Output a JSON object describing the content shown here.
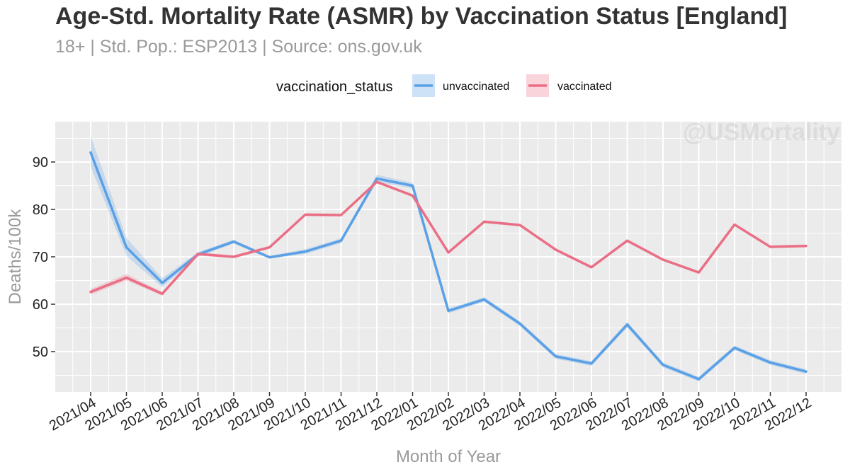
{
  "title": "Age-Std. Mortality Rate (ASMR) by Vaccination Status [England]",
  "subtitle": "18+ | Std. Pop.: ESP2013 | Source: ons.gov.uk",
  "watermark": "@USMortality",
  "colors": {
    "unvaccinated": "#5aa0e6",
    "vaccinated": "#ea6f86",
    "panel": "#ebebeb",
    "grid": "#ffffff"
  },
  "chart_data": {
    "type": "line",
    "title": "Age-Std. Mortality Rate (ASMR) by Vaccination Status [England]",
    "subtitle": "18+ | Std. Pop.: ESP2013 | Source: ons.gov.uk",
    "xlabel": "Month of Year",
    "ylabel": "Deaths/100k",
    "categories": [
      "2021/04",
      "2021/05",
      "2021/06",
      "2021/07",
      "2021/08",
      "2021/09",
      "2021/10",
      "2021/11",
      "2021/12",
      "2022/01",
      "2022/02",
      "2022/03",
      "2022/04",
      "2022/05",
      "2022/06",
      "2022/07",
      "2022/08",
      "2022/09",
      "2022/10",
      "2022/11",
      "2022/12"
    ],
    "y_ticks": [
      50,
      60,
      70,
      80,
      90
    ],
    "ylim": [
      41.5,
      98.5
    ],
    "grid": true,
    "legend": {
      "title": "vaccination_status",
      "position": "top"
    },
    "series": [
      {
        "name": "unvaccinated",
        "values": [
          92.0,
          72.0,
          64.5,
          70.5,
          73.2,
          69.9,
          71.1,
          73.4,
          86.5,
          85.0,
          58.6,
          61.0,
          55.9,
          49.0,
          47.5,
          55.7,
          47.2,
          44.2,
          50.8,
          47.7,
          45.8
        ],
        "lower": [
          89.0,
          70.2,
          63.6,
          70.0,
          72.8,
          69.6,
          70.6,
          72.9,
          85.8,
          84.4,
          58.1,
          60.5,
          55.4,
          48.5,
          47.0,
          55.1,
          46.7,
          43.7,
          50.3,
          47.2,
          45.3
        ],
        "upper": [
          95.5,
          74.0,
          65.5,
          71.0,
          73.6,
          70.2,
          71.6,
          73.9,
          87.3,
          85.6,
          59.1,
          61.5,
          56.4,
          49.5,
          48.0,
          56.3,
          47.7,
          44.7,
          51.3,
          48.2,
          46.3
        ]
      },
      {
        "name": "vaccinated",
        "values": [
          62.6,
          65.6,
          62.2,
          70.6,
          70.0,
          72.0,
          78.9,
          78.8,
          85.8,
          82.9,
          70.9,
          77.4,
          76.7,
          71.5,
          67.8,
          73.4,
          69.4,
          66.7,
          76.8,
          72.1,
          72.3
        ],
        "lower": [
          62.0,
          65.0,
          61.8,
          70.2,
          69.7,
          71.7,
          78.6,
          78.5,
          85.5,
          82.6,
          70.6,
          77.1,
          76.4,
          71.2,
          67.5,
          73.1,
          69.1,
          66.4,
          76.5,
          71.8,
          72.0
        ],
        "upper": [
          63.2,
          66.4,
          62.6,
          71.0,
          70.3,
          72.3,
          79.2,
          79.1,
          86.1,
          83.2,
          71.2,
          77.7,
          77.0,
          71.8,
          68.1,
          73.7,
          69.7,
          67.0,
          77.1,
          72.4,
          72.6
        ]
      }
    ]
  }
}
